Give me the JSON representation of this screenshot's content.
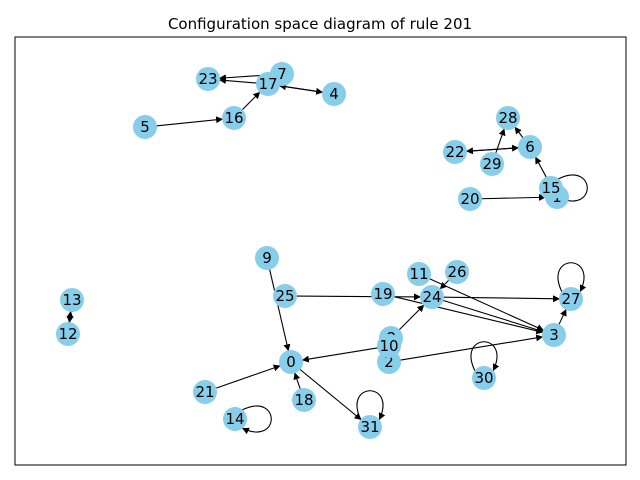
{
  "title": "Configuration space diagram of rule 201",
  "colors": {
    "node": "#87ceeb",
    "edge": "#000000",
    "frame": "#000000",
    "background": "#ffffff"
  },
  "nodes": [
    {
      "id": "0"
    },
    {
      "id": "1"
    },
    {
      "id": "2"
    },
    {
      "id": "3"
    },
    {
      "id": "4"
    },
    {
      "id": "5"
    },
    {
      "id": "6"
    },
    {
      "id": "7"
    },
    {
      "id": "8"
    },
    {
      "id": "9"
    },
    {
      "id": "10"
    },
    {
      "id": "11"
    },
    {
      "id": "12"
    },
    {
      "id": "13"
    },
    {
      "id": "14"
    },
    {
      "id": "15"
    },
    {
      "id": "16"
    },
    {
      "id": "17"
    },
    {
      "id": "18"
    },
    {
      "id": "19"
    },
    {
      "id": "20"
    },
    {
      "id": "21"
    },
    {
      "id": "22"
    },
    {
      "id": "23"
    },
    {
      "id": "24"
    },
    {
      "id": "25"
    },
    {
      "id": "26"
    },
    {
      "id": "27"
    },
    {
      "id": "28"
    },
    {
      "id": "29"
    },
    {
      "id": "30"
    },
    {
      "id": "31"
    }
  ],
  "edges": [
    {
      "from": "5",
      "to": "16"
    },
    {
      "from": "16",
      "to": "17"
    },
    {
      "from": "17",
      "to": "23"
    },
    {
      "from": "7",
      "to": "23"
    },
    {
      "from": "17",
      "to": "4"
    },
    {
      "from": "4",
      "to": "17"
    },
    {
      "from": "20",
      "to": "1"
    },
    {
      "from": "1",
      "to": "6"
    },
    {
      "from": "15",
      "to": "15"
    },
    {
      "from": "6",
      "to": "28"
    },
    {
      "from": "29",
      "to": "28"
    },
    {
      "from": "6",
      "to": "22"
    },
    {
      "from": "22",
      "to": "6"
    },
    {
      "from": "12",
      "to": "13"
    },
    {
      "from": "13",
      "to": "12"
    },
    {
      "from": "9",
      "to": "0"
    },
    {
      "from": "25",
      "to": "24"
    },
    {
      "from": "19",
      "to": "3"
    },
    {
      "from": "24",
      "to": "27"
    },
    {
      "from": "24",
      "to": "3"
    },
    {
      "from": "11",
      "to": "3"
    },
    {
      "from": "26",
      "to": "24"
    },
    {
      "from": "10",
      "to": "0"
    },
    {
      "from": "8",
      "to": "24"
    },
    {
      "from": "2",
      "to": "3"
    },
    {
      "from": "27",
      "to": "27"
    },
    {
      "from": "3",
      "to": "27"
    },
    {
      "from": "30",
      "to": "30"
    },
    {
      "from": "18",
      "to": "0"
    },
    {
      "from": "21",
      "to": "0"
    },
    {
      "from": "14",
      "to": "14"
    },
    {
      "from": "0",
      "to": "31"
    },
    {
      "from": "31",
      "to": "31"
    }
  ]
}
